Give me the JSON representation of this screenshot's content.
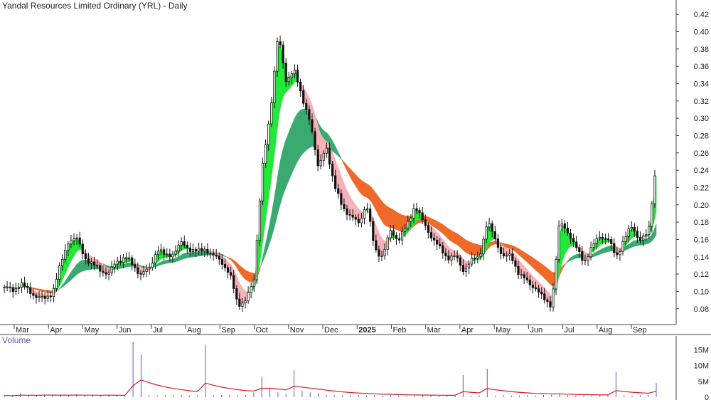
{
  "chart_data": {
    "type": "candlestick",
    "title": "Yandal Resources Limited Ordinary (YRL) - Daily",
    "volume_label": "Volume",
    "price_axis": {
      "ticks": [
        "0.08",
        "0.10",
        "0.12",
        "0.14",
        "0.16",
        "0.18",
        "0.20",
        "0.22",
        "0.24",
        "0.26",
        "0.28",
        "0.30",
        "0.32",
        "0.34",
        "0.36",
        "0.38",
        "0.40",
        "0.42"
      ],
      "range": [
        0.065,
        0.43
      ]
    },
    "volume_axis": {
      "ticks": [
        "0",
        "5M",
        "10M",
        "15M"
      ],
      "range": [
        0,
        18
      ]
    },
    "x_labels": [
      "Mar",
      "Apr",
      "May",
      "Jun",
      "Jul",
      "Aug",
      "Sep",
      "Oct",
      "Nov",
      "Dec",
      "2025",
      "Feb",
      "Mar",
      "Apr",
      "May",
      "Jun",
      "Jul",
      "Aug",
      "Sep"
    ],
    "series": [
      {
        "name": "Price",
        "close": [
          0.105,
          0.1,
          0.11,
          0.1,
          0.095,
          0.09,
          0.1,
          0.13,
          0.16,
          0.16,
          0.14,
          0.13,
          0.125,
          0.12,
          0.135,
          0.14,
          0.13,
          0.12,
          0.125,
          0.15,
          0.14,
          0.145,
          0.155,
          0.15,
          0.145,
          0.15,
          0.14,
          0.135,
          0.12,
          0.085,
          0.09,
          0.11,
          0.24,
          0.3,
          0.4,
          0.34,
          0.36,
          0.32,
          0.3,
          0.24,
          0.27,
          0.22,
          0.2,
          0.185,
          0.18,
          0.2,
          0.15,
          0.14,
          0.17,
          0.16,
          0.175,
          0.2,
          0.18,
          0.165,
          0.15,
          0.14,
          0.14,
          0.125,
          0.135,
          0.14,
          0.18,
          0.16,
          0.14,
          0.14,
          0.12,
          0.11,
          0.105,
          0.09,
          0.085,
          0.18,
          0.17,
          0.15,
          0.135,
          0.15,
          0.165,
          0.16,
          0.14,
          0.16,
          0.175,
          0.16,
          0.165,
          0.25
        ]
      },
      {
        "name": "Volume",
        "unit": "M",
        "values": [
          0.5,
          0.4,
          1.2,
          0.6,
          0.5,
          0.8,
          0.7,
          0.5,
          0.6,
          0.9,
          0.5,
          0.6,
          0.5,
          0.7,
          0.6,
          0.4,
          17.5,
          13.5,
          0.6,
          0.5,
          0.5,
          0.6,
          0.7,
          0.5,
          0.6,
          16.5,
          0.5,
          0.7,
          0.8,
          0.6,
          0.7,
          1.5,
          6.5,
          3.0,
          1.5,
          1.0,
          8.5,
          2.0,
          1.5,
          1.2,
          0.8,
          0.6,
          0.5,
          0.5,
          0.6,
          0.5,
          0.6,
          0.5,
          0.6,
          0.5,
          0.4,
          0.5,
          0.6,
          0.5,
          0.4,
          0.5,
          0.6,
          7.0,
          0.5,
          0.6,
          9.0,
          0.5,
          0.6,
          0.5,
          0.5,
          0.6,
          0.5,
          0.7,
          0.8,
          0.9,
          0.6,
          0.5,
          0.6,
          0.5,
          0.6,
          0.7,
          8.0,
          0.6,
          0.5,
          0.6,
          0.7,
          4.5
        ]
      }
    ],
    "indicators": "Guppy multiple moving average ribbons (short-term green / pink, long-term sea-green / orange)",
    "colors": {
      "candle": "#111111",
      "short_up": "#22e83a",
      "short_down": "#f4b3b8",
      "long_up": "#3aaa70",
      "long_down": "#ef6a2a",
      "volume_bar": "#5858c8",
      "volume_avg": "#d02020",
      "axis_text": "#222222"
    },
    "grid": false,
    "legend": "none"
  }
}
